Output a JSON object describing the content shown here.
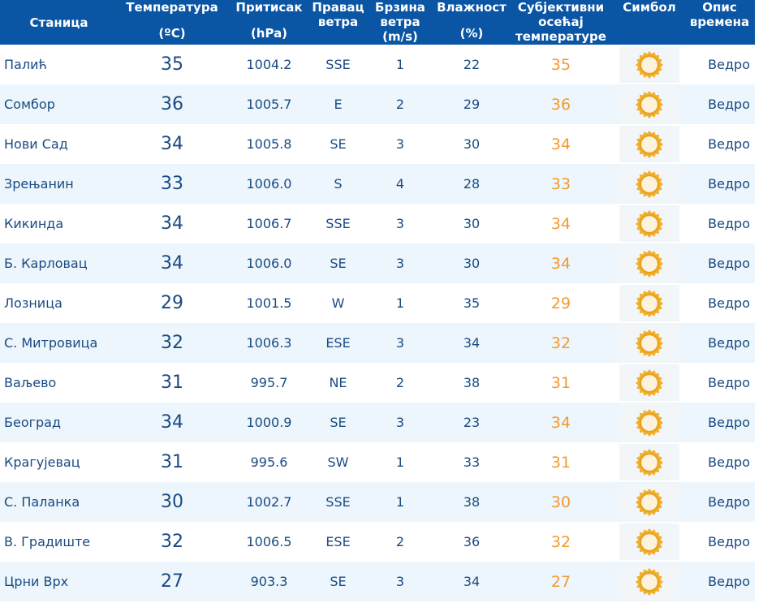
{
  "headers": [
    {
      "lines": [
        "Станица"
      ],
      "unit": ""
    },
    {
      "lines": [
        "Температура"
      ],
      "unit": "(ºC)"
    },
    {
      "lines": [
        "Притисак"
      ],
      "unit": "(hPa)"
    },
    {
      "lines": [
        "Правац",
        "ветра"
      ],
      "unit": ""
    },
    {
      "lines": [
        "Брзина",
        "ветра",
        "(m/s)"
      ],
      "unit": ""
    },
    {
      "lines": [
        "Влажност"
      ],
      "unit": "(%)"
    },
    {
      "lines": [
        "Субјективни",
        "осећај",
        "температуре"
      ],
      "unit": ""
    },
    {
      "lines": [
        "Симбол"
      ],
      "unit": ""
    },
    {
      "lines": [
        "Опис",
        "времена"
      ],
      "unit": ""
    }
  ],
  "symbol_icon": "sun-icon",
  "colors": {
    "header_bg": "#0a55a4",
    "text": "#1a4a82",
    "feels_like": "#f39a2f",
    "row_alt": "#ecf6fc"
  },
  "rows": [
    {
      "station": "Палић",
      "temp": "35",
      "pressure": "1004.2",
      "wind_dir": "SSE",
      "wind_speed": "1",
      "humidity": "22",
      "feels_like": "35",
      "description": "Ведро"
    },
    {
      "station": "Сомбор",
      "temp": "36",
      "pressure": "1005.7",
      "wind_dir": "E",
      "wind_speed": "2",
      "humidity": "29",
      "feels_like": "36",
      "description": "Ведро"
    },
    {
      "station": "Нови Сад",
      "temp": "34",
      "pressure": "1005.8",
      "wind_dir": "SE",
      "wind_speed": "3",
      "humidity": "30",
      "feels_like": "34",
      "description": "Ведро"
    },
    {
      "station": "Зрењанин",
      "temp": "33",
      "pressure": "1006.0",
      "wind_dir": "S",
      "wind_speed": "4",
      "humidity": "28",
      "feels_like": "33",
      "description": "Ведро"
    },
    {
      "station": "Кикинда",
      "temp": "34",
      "pressure": "1006.7",
      "wind_dir": "SSE",
      "wind_speed": "3",
      "humidity": "30",
      "feels_like": "34",
      "description": "Ведро"
    },
    {
      "station": "Б. Карловац",
      "temp": "34",
      "pressure": "1006.0",
      "wind_dir": "SE",
      "wind_speed": "3",
      "humidity": "30",
      "feels_like": "34",
      "description": "Ведро"
    },
    {
      "station": "Лозница",
      "temp": "29",
      "pressure": "1001.5",
      "wind_dir": "W",
      "wind_speed": "1",
      "humidity": "35",
      "feels_like": "29",
      "description": "Ведро"
    },
    {
      "station": "С. Митровица",
      "temp": "32",
      "pressure": "1006.3",
      "wind_dir": "ESE",
      "wind_speed": "3",
      "humidity": "34",
      "feels_like": "32",
      "description": "Ведро"
    },
    {
      "station": "Ваљево",
      "temp": "31",
      "pressure": "995.7",
      "wind_dir": "NE",
      "wind_speed": "2",
      "humidity": "38",
      "feels_like": "31",
      "description": "Ведро"
    },
    {
      "station": "Београд",
      "temp": "34",
      "pressure": "1000.9",
      "wind_dir": "SE",
      "wind_speed": "3",
      "humidity": "23",
      "feels_like": "34",
      "description": "Ведро"
    },
    {
      "station": "Крагујевац",
      "temp": "31",
      "pressure": "995.6",
      "wind_dir": "SW",
      "wind_speed": "1",
      "humidity": "33",
      "feels_like": "31",
      "description": "Ведро"
    },
    {
      "station": "С. Паланка",
      "temp": "30",
      "pressure": "1002.7",
      "wind_dir": "SSE",
      "wind_speed": "1",
      "humidity": "38",
      "feels_like": "30",
      "description": "Ведро"
    },
    {
      "station": "В. Градиште",
      "temp": "32",
      "pressure": "1006.5",
      "wind_dir": "ESE",
      "wind_speed": "2",
      "humidity": "36",
      "feels_like": "32",
      "description": "Ведро"
    },
    {
      "station": "Црни Врх",
      "temp": "27",
      "pressure": "903.3",
      "wind_dir": "SE",
      "wind_speed": "3",
      "humidity": "34",
      "feels_like": "27",
      "description": "Ведро"
    }
  ]
}
